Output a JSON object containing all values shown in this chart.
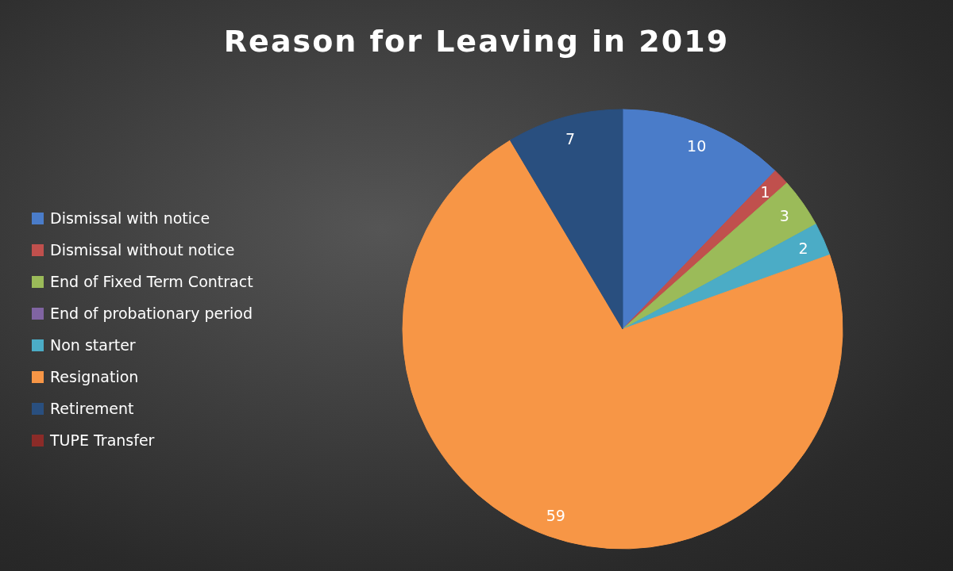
{
  "chart_data": {
    "type": "pie",
    "title": "Reason for Leaving in 2019",
    "categories": [
      "Dismissal with notice",
      "Dismissal without notice",
      "End of Fixed Term Contract",
      "End of probationary period",
      "Non starter",
      "Resignation",
      "Retirement",
      "TUPE Transfer"
    ],
    "values": [
      10,
      1,
      3,
      0,
      2,
      59,
      7,
      0
    ],
    "colors": [
      "#4a7cc9",
      "#c0504d",
      "#9bbb59",
      "#8064a2",
      "#4bacc6",
      "#f79646",
      "#294f7f",
      "#8b2b28"
    ],
    "value_labels": [
      "10",
      "1",
      "3",
      null,
      "2",
      "59",
      "7",
      null
    ],
    "legend": "left"
  }
}
